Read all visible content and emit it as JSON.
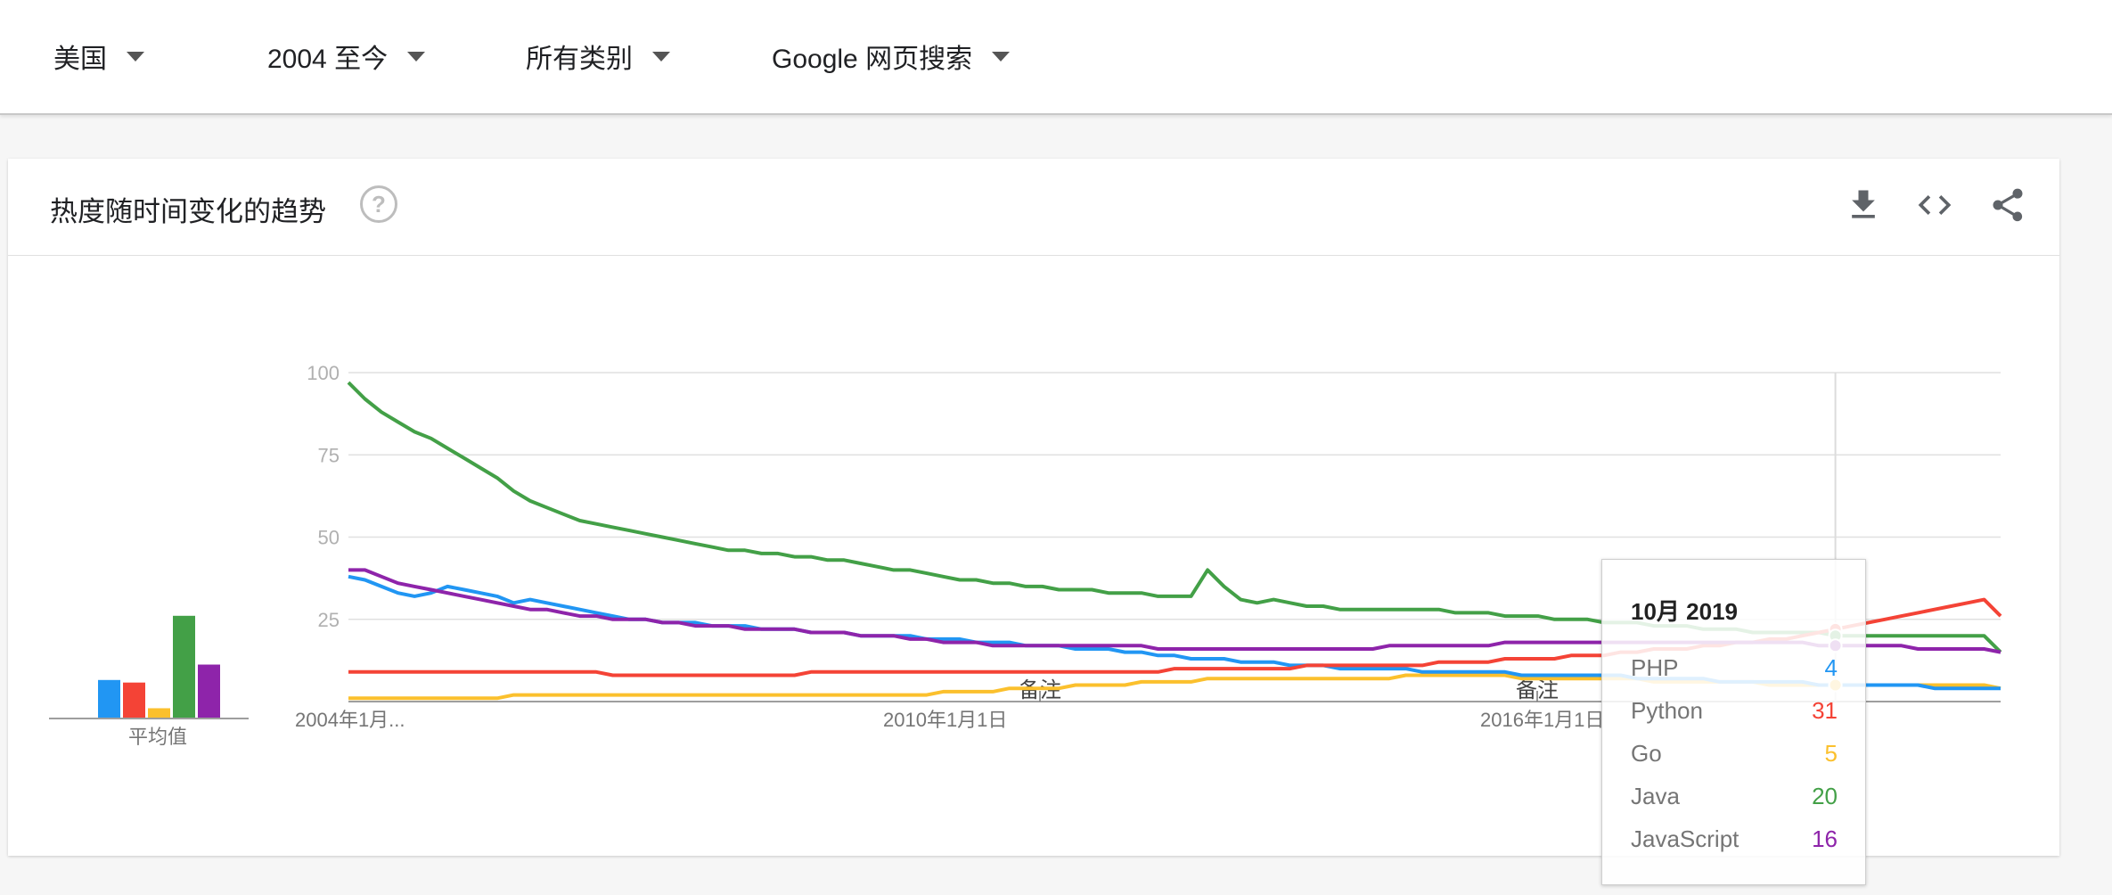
{
  "filters": {
    "region": "美国",
    "time": "2004 至今",
    "category": "所有类别",
    "search_type": "Google 网页搜索"
  },
  "card": {
    "title": "热度随时间变化的趋势",
    "help_glyph": "?",
    "download_icon": "download-icon",
    "embed_icon": "embed-code-icon",
    "share_icon": "share-icon"
  },
  "average": {
    "label": "平均值"
  },
  "chart_data": {
    "type": "line",
    "x_ticks": [
      "2004年1月...",
      "2010年1月1日",
      "2016年1月1日"
    ],
    "y_ticks": [
      100,
      75,
      50,
      25
    ],
    "ylim": [
      0,
      100
    ],
    "notes": [
      "备注",
      "备注"
    ],
    "grid": true,
    "series": [
      {
        "name": "PHP",
        "color": "#2196f3",
        "average": 15,
        "values": [
          38,
          37,
          35,
          33,
          32,
          33,
          35,
          34,
          33,
          32,
          30,
          31,
          30,
          29,
          28,
          27,
          26,
          25,
          25,
          24,
          24,
          24,
          23,
          23,
          23,
          22,
          22,
          22,
          21,
          21,
          21,
          20,
          20,
          20,
          20,
          19,
          19,
          19,
          18,
          18,
          18,
          17,
          17,
          17,
          16,
          16,
          16,
          15,
          15,
          14,
          14,
          13,
          13,
          13,
          12,
          12,
          12,
          11,
          11,
          11,
          10,
          10,
          10,
          10,
          10,
          9,
          9,
          9,
          9,
          9,
          9,
          8,
          8,
          8,
          8,
          8,
          8,
          8,
          7,
          7,
          7,
          7,
          7,
          6,
          6,
          6,
          6,
          6,
          6,
          5,
          5,
          5,
          5,
          5,
          5,
          5,
          4,
          4,
          4,
          4,
          4
        ]
      },
      {
        "name": "Python",
        "color": "#f44336",
        "average": 14,
        "values": [
          9,
          9,
          9,
          9,
          9,
          9,
          9,
          9,
          9,
          9,
          9,
          9,
          9,
          9,
          9,
          9,
          8,
          8,
          8,
          8,
          8,
          8,
          8,
          8,
          8,
          8,
          8,
          8,
          9,
          9,
          9,
          9,
          9,
          9,
          9,
          9,
          9,
          9,
          9,
          9,
          9,
          9,
          9,
          9,
          9,
          9,
          9,
          9,
          9,
          9,
          10,
          10,
          10,
          10,
          10,
          10,
          10,
          10,
          11,
          11,
          11,
          11,
          11,
          11,
          11,
          11,
          12,
          12,
          12,
          12,
          13,
          13,
          13,
          13,
          14,
          14,
          14,
          15,
          15,
          16,
          16,
          16,
          17,
          17,
          18,
          18,
          19,
          19,
          20,
          21,
          22,
          23,
          24,
          25,
          26,
          27,
          28,
          29,
          30,
          31,
          26
        ]
      },
      {
        "name": "Go",
        "color": "#fbc02d",
        "average": 4,
        "values": [
          1,
          1,
          1,
          1,
          1,
          1,
          1,
          1,
          1,
          1,
          2,
          2,
          2,
          2,
          2,
          2,
          2,
          2,
          2,
          2,
          2,
          2,
          2,
          2,
          2,
          2,
          2,
          2,
          2,
          2,
          2,
          2,
          2,
          2,
          2,
          2,
          3,
          3,
          3,
          3,
          4,
          4,
          4,
          4,
          5,
          5,
          5,
          5,
          6,
          6,
          6,
          6,
          7,
          7,
          7,
          7,
          7,
          7,
          7,
          7,
          7,
          7,
          7,
          7,
          8,
          8,
          8,
          8,
          8,
          8,
          8,
          7,
          7,
          7,
          7,
          7,
          7,
          7,
          7,
          6,
          6,
          6,
          6,
          6,
          6,
          6,
          5,
          5,
          5,
          5,
          5,
          5,
          5,
          5,
          5,
          5,
          5,
          5,
          5,
          5,
          4
        ]
      },
      {
        "name": "Java",
        "color": "#43a047",
        "average": 40,
        "values": [
          97,
          92,
          88,
          85,
          82,
          80,
          77,
          74,
          71,
          68,
          64,
          61,
          59,
          57,
          55,
          54,
          53,
          52,
          51,
          50,
          49,
          48,
          47,
          46,
          46,
          45,
          45,
          44,
          44,
          43,
          43,
          42,
          41,
          40,
          40,
          39,
          38,
          37,
          37,
          36,
          36,
          35,
          35,
          34,
          34,
          34,
          33,
          33,
          33,
          32,
          32,
          32,
          40,
          35,
          31,
          30,
          31,
          30,
          29,
          29,
          28,
          28,
          28,
          28,
          28,
          28,
          28,
          27,
          27,
          27,
          26,
          26,
          26,
          25,
          25,
          25,
          24,
          24,
          24,
          23,
          23,
          23,
          22,
          22,
          22,
          21,
          21,
          21,
          21,
          21,
          20,
          20,
          20,
          20,
          20,
          20,
          20,
          20,
          20,
          20,
          15
        ]
      },
      {
        "name": "JavaScript",
        "color": "#8e24aa",
        "average": 21,
        "values": [
          40,
          40,
          38,
          36,
          35,
          34,
          33,
          32,
          31,
          30,
          29,
          28,
          28,
          27,
          26,
          26,
          25,
          25,
          25,
          24,
          24,
          23,
          23,
          23,
          22,
          22,
          22,
          22,
          21,
          21,
          21,
          20,
          20,
          20,
          19,
          19,
          18,
          18,
          18,
          17,
          17,
          17,
          17,
          17,
          17,
          17,
          17,
          17,
          17,
          16,
          16,
          16,
          16,
          16,
          16,
          16,
          16,
          16,
          16,
          16,
          16,
          16,
          16,
          17,
          17,
          17,
          17,
          17,
          17,
          17,
          18,
          18,
          18,
          18,
          18,
          18,
          18,
          18,
          18,
          18,
          18,
          18,
          18,
          18,
          18,
          18,
          18,
          18,
          18,
          17,
          17,
          17,
          17,
          17,
          17,
          16,
          16,
          16,
          16,
          16,
          15
        ]
      }
    ],
    "tooltip": {
      "date": "10月 2019",
      "rows": [
        {
          "name": "PHP",
          "value": "4"
        },
        {
          "name": "Python",
          "value": "31"
        },
        {
          "name": "Go",
          "value": "5"
        },
        {
          "name": "Java",
          "value": "20"
        },
        {
          "name": "JavaScript",
          "value": "16"
        }
      ]
    }
  }
}
